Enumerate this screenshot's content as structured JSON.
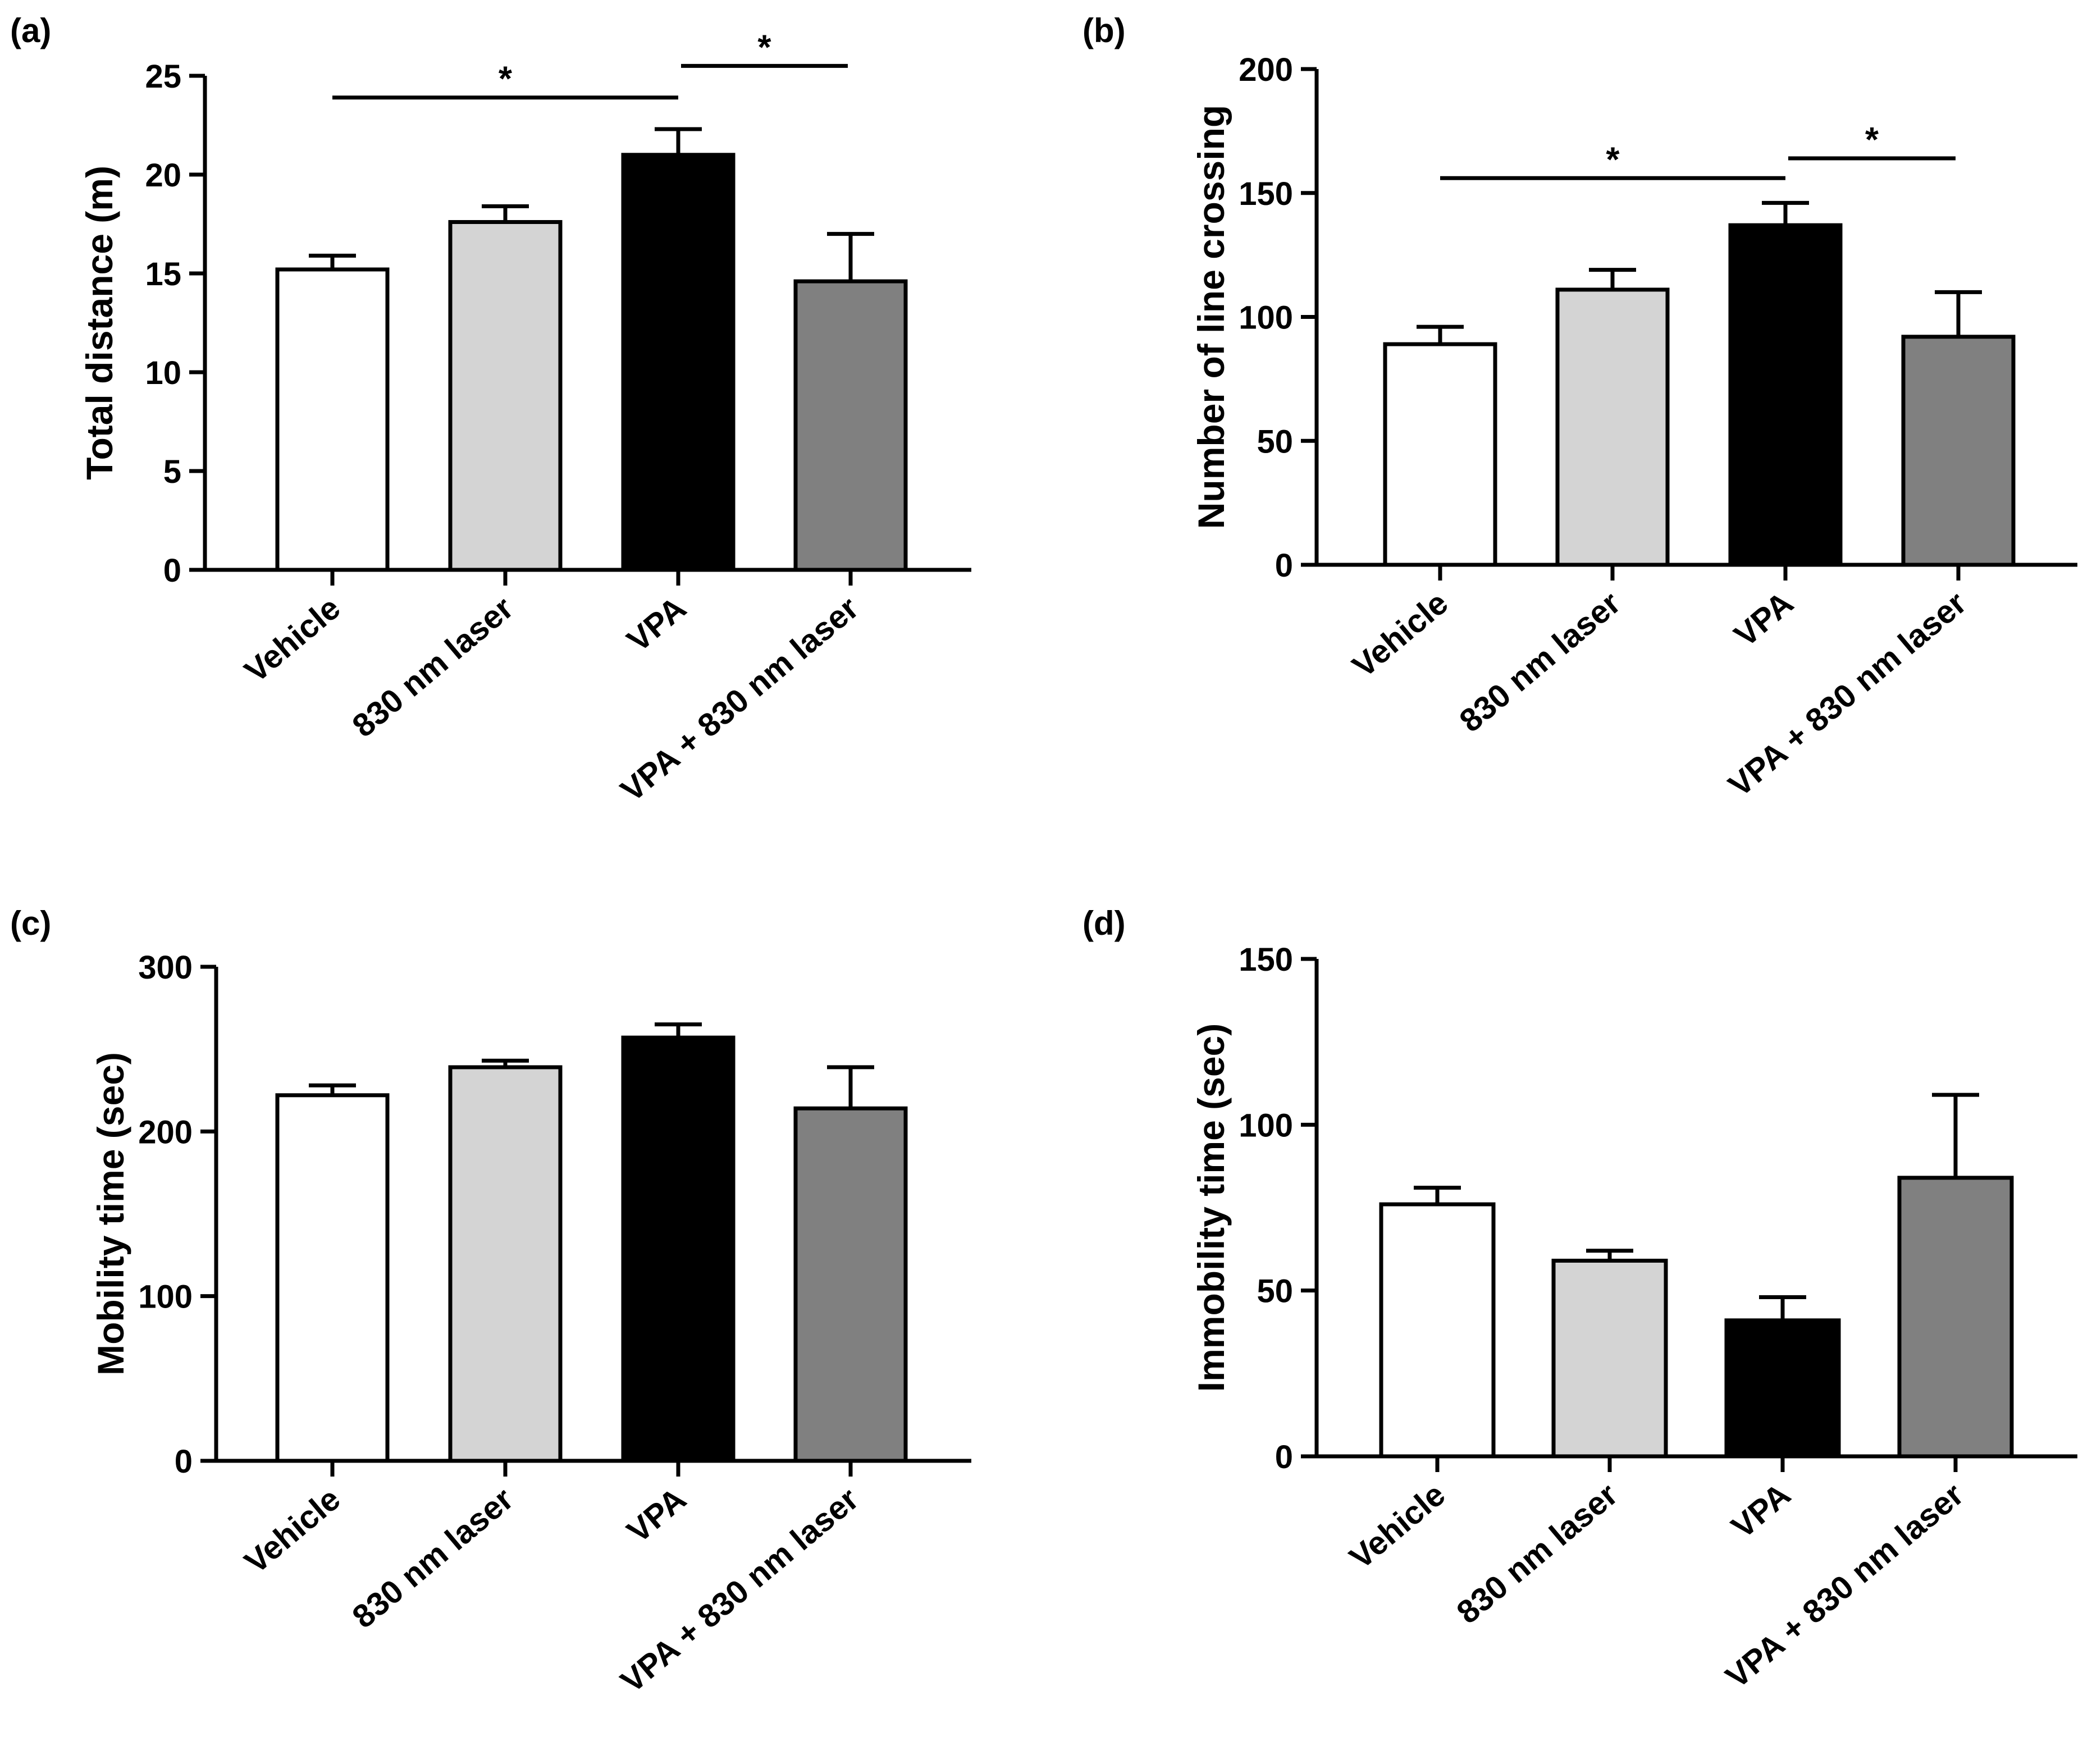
{
  "figure": {
    "background": "#ffffff"
  },
  "chart_data": [
    {
      "panel_label": "(a)",
      "type": "bar",
      "categories": [
        "Vehicle",
        "830 nm laser",
        "VPA",
        "VPA + 830 nm laser"
      ],
      "values": [
        15.2,
        17.6,
        21.0,
        14.6
      ],
      "errors": [
        0.7,
        0.8,
        1.3,
        2.4
      ],
      "colors": [
        "#ffffff",
        "#d4d4d4",
        "#000000",
        "#808080"
      ],
      "ylabel": "Total distance (m)",
      "ylim": [
        0,
        25
      ],
      "yticks": [
        0,
        5,
        10,
        15,
        20,
        25
      ],
      "significance": [
        {
          "from": 0,
          "to": 2,
          "label": "*",
          "level": 23.9
        },
        {
          "from": 2,
          "to": 3,
          "label": "*",
          "level": 25.5
        }
      ]
    },
    {
      "panel_label": "(b)",
      "type": "bar",
      "categories": [
        "Vehicle",
        "830 nm laser",
        "VPA",
        "VPA + 830 nm laser"
      ],
      "values": [
        89,
        111,
        137,
        92
      ],
      "errors": [
        7,
        8,
        9,
        18
      ],
      "colors": [
        "#ffffff",
        "#d4d4d4",
        "#000000",
        "#808080"
      ],
      "ylabel": "Number of line crossing",
      "ylim": [
        0,
        200
      ],
      "yticks": [
        0,
        50,
        100,
        150,
        200
      ],
      "significance": [
        {
          "from": 0,
          "to": 2,
          "label": "*",
          "level": 156
        },
        {
          "from": 2,
          "to": 3,
          "label": "*",
          "level": 164
        }
      ]
    },
    {
      "panel_label": "(c)",
      "type": "bar",
      "categories": [
        "Vehicle",
        "830 nm laser",
        "VPA",
        "VPA + 830 nm laser"
      ],
      "values": [
        222,
        239,
        257,
        214
      ],
      "errors": [
        6,
        4,
        8,
        25
      ],
      "colors": [
        "#ffffff",
        "#d4d4d4",
        "#000000",
        "#808080"
      ],
      "ylabel": "Mobility time (sec)",
      "ylim": [
        0,
        300
      ],
      "yticks": [
        0,
        100,
        200,
        300
      ],
      "significance": []
    },
    {
      "panel_label": "(d)",
      "type": "bar",
      "categories": [
        "Vehicle",
        "830 nm laser",
        "VPA",
        "VPA + 830 nm laser"
      ],
      "values": [
        76,
        59,
        41,
        84
      ],
      "errors": [
        5,
        3,
        7,
        25
      ],
      "colors": [
        "#ffffff",
        "#d4d4d4",
        "#000000",
        "#808080"
      ],
      "ylabel": "Immobility time (sec)",
      "ylim": [
        0,
        150
      ],
      "yticks": [
        0,
        50,
        100,
        150
      ],
      "significance": []
    }
  ]
}
